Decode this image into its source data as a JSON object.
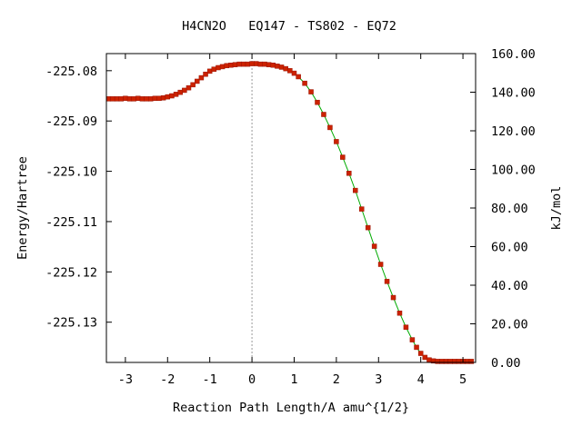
{
  "chart_data": {
    "type": "line",
    "title": "H4CN2O   EQ147 - TS802 - EQ72",
    "xlabel": "Reaction Path Length/A amu^{1/2}",
    "ylabel": "Energy/Hartree",
    "y2label": "kJ/mol",
    "xlim": [
      -3.45,
      5.3
    ],
    "ylim": [
      -225.138,
      -225.0766
    ],
    "y2lim": [
      0,
      160
    ],
    "x_ticks": [
      {
        "value": -3,
        "label": "-3"
      },
      {
        "value": -2,
        "label": "-2"
      },
      {
        "value": -1,
        "label": "-1"
      },
      {
        "value": 0,
        "label": "0"
      },
      {
        "value": 1,
        "label": "1"
      },
      {
        "value": 2,
        "label": "2"
      },
      {
        "value": 3,
        "label": "3"
      },
      {
        "value": 4,
        "label": "4"
      },
      {
        "value": 5,
        "label": "5"
      }
    ],
    "y_ticks": [
      {
        "value": -225.08,
        "label": "-225.08"
      },
      {
        "value": -225.09,
        "label": "-225.09"
      },
      {
        "value": -225.1,
        "label": "-225.10"
      },
      {
        "value": -225.11,
        "label": "-225.11"
      },
      {
        "value": -225.12,
        "label": "-225.12"
      },
      {
        "value": -225.13,
        "label": "-225.13"
      }
    ],
    "y2_ticks": [
      {
        "value": 0,
        "label": "0.00"
      },
      {
        "value": 20,
        "label": "20.00"
      },
      {
        "value": 40,
        "label": "40.00"
      },
      {
        "value": 60,
        "label": "60.00"
      },
      {
        "value": 80,
        "label": "80.00"
      },
      {
        "value": 100,
        "label": "100.00"
      },
      {
        "value": 120,
        "label": "120.00"
      },
      {
        "value": 140,
        "label": "140.00"
      },
      {
        "value": 160,
        "label": "160.00"
      }
    ],
    "ts_line_x": 0,
    "grid": false,
    "colors": {
      "line": "#00aa00",
      "marker": "#cc2200",
      "ts_line": "#999999"
    },
    "series": [
      {
        "x": [
          -3.4,
          -3.3,
          -3.2,
          -3.1,
          -3.0,
          -2.9,
          -2.8,
          -2.7,
          -2.6,
          -2.5,
          -2.4,
          -2.3,
          -2.2,
          -2.1,
          -2.0,
          -1.9,
          -1.8,
          -1.7,
          -1.6,
          -1.5,
          -1.4,
          -1.3,
          -1.2,
          -1.1,
          -1.0,
          -0.9,
          -0.8,
          -0.7,
          -0.6,
          -0.5,
          -0.4,
          -0.3,
          -0.2,
          -0.1,
          0.0,
          0.1,
          0.2,
          0.3,
          0.4,
          0.5,
          0.6,
          0.7,
          0.8,
          0.9,
          1.0,
          1.1,
          1.25,
          1.4,
          1.55,
          1.7,
          1.85,
          2.0,
          2.15,
          2.3,
          2.45,
          2.6,
          2.75,
          2.9,
          3.05,
          3.2,
          3.35,
          3.5,
          3.65,
          3.8,
          3.9,
          4.0,
          4.1,
          4.2,
          4.3,
          4.4,
          4.5,
          4.6,
          4.7,
          4.8,
          4.9,
          5.0,
          5.1,
          5.2
        ],
        "y": [
          -225.0856,
          -225.0856,
          -225.0856,
          -225.0856,
          -225.0855,
          -225.0856,
          -225.0856,
          -225.0855,
          -225.0856,
          -225.0856,
          -225.0856,
          -225.0855,
          -225.0855,
          -225.0854,
          -225.0852,
          -225.085,
          -225.0847,
          -225.0843,
          -225.0839,
          -225.0834,
          -225.0828,
          -225.0821,
          -225.0814,
          -225.0807,
          -225.0801,
          -225.0797,
          -225.0794,
          -225.0792,
          -225.079,
          -225.0789,
          -225.0788,
          -225.0787,
          -225.0787,
          -225.0787,
          -225.0786,
          -225.0786,
          -225.0787,
          -225.0787,
          -225.0788,
          -225.0789,
          -225.0791,
          -225.0793,
          -225.0796,
          -225.08,
          -225.0805,
          -225.0812,
          -225.0825,
          -225.0842,
          -225.0863,
          -225.0887,
          -225.0913,
          -225.0941,
          -225.0972,
          -225.1004,
          -225.1038,
          -225.1075,
          -225.1112,
          -225.1149,
          -225.1185,
          -225.1219,
          -225.1251,
          -225.1282,
          -225.131,
          -225.1335,
          -225.135,
          -225.1362,
          -225.137,
          -225.1375,
          -225.1377,
          -225.1378,
          -225.1378,
          -225.1378,
          -225.1378,
          -225.1378,
          -225.1378,
          -225.1378,
          -225.1378,
          -225.1378
        ]
      }
    ]
  }
}
